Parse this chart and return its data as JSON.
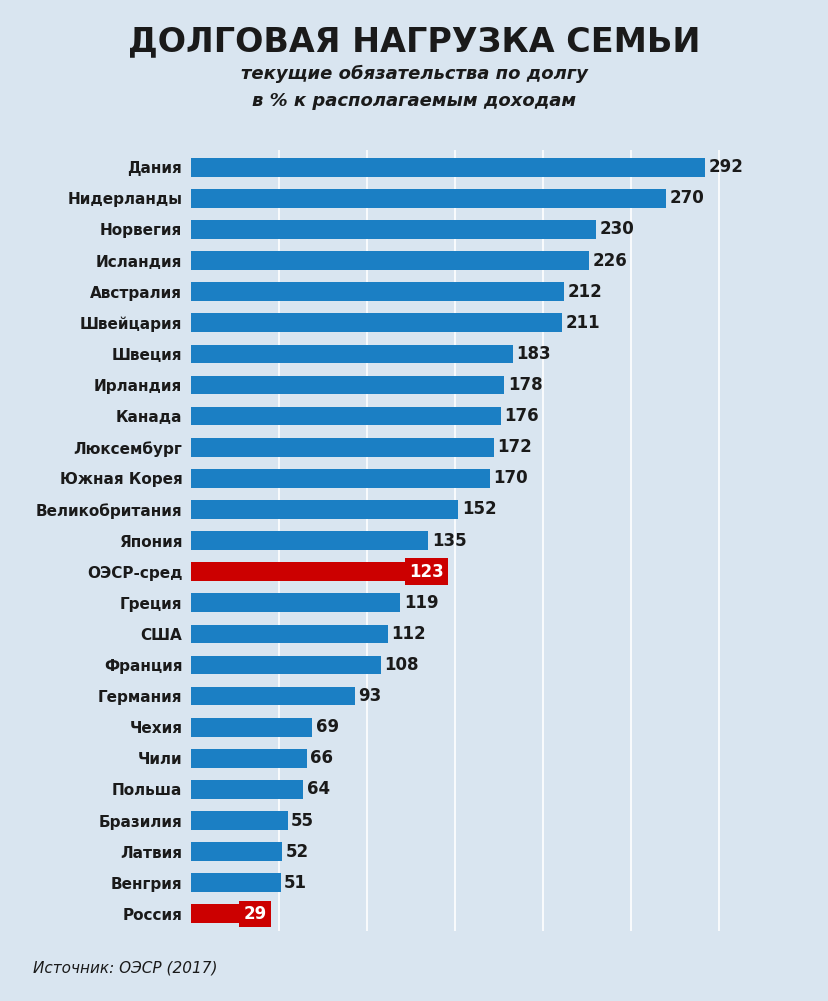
{
  "title": "ДОЛГОВАЯ НАГРУЗКА СЕМЬИ",
  "subtitle": "текущие обязательства по долгу\nв % к располагаемым доходам",
  "source": "Источник: ОЭСР (2017)",
  "categories": [
    "Дания",
    "Нидерланды",
    "Норвегия",
    "Исландия",
    "Австралия",
    "Швейцария",
    "Швеция",
    "Ирландия",
    "Канада",
    "Люксембург",
    "Южная Корея",
    "Великобритания",
    "Япония",
    "ОЭСР-сред",
    "Греция",
    "США",
    "Франция",
    "Германия",
    "Чехия",
    "Чили",
    "Польша",
    "Бразилия",
    "Латвия",
    "Венгрия",
    "Россия"
  ],
  "values": [
    292,
    270,
    230,
    226,
    212,
    211,
    183,
    178,
    176,
    172,
    170,
    152,
    135,
    123,
    119,
    112,
    108,
    93,
    69,
    66,
    64,
    55,
    52,
    51,
    29
  ],
  "bar_color_default": "#1b7fc4",
  "bar_color_red": "#cc0000",
  "red_bars": [
    "ОЭСР-сред",
    "Россия"
  ],
  "background_color": "#d9e5f0",
  "label_color_default": "#1a1a1a",
  "label_color_white": "#ffffff",
  "title_fontsize": 24,
  "subtitle_fontsize": 13,
  "bar_label_fontsize": 12,
  "tick_fontsize": 11,
  "source_fontsize": 11,
  "xlim": [
    0,
    320
  ],
  "grid_vals": [
    50,
    100,
    150,
    200,
    250,
    300
  ]
}
